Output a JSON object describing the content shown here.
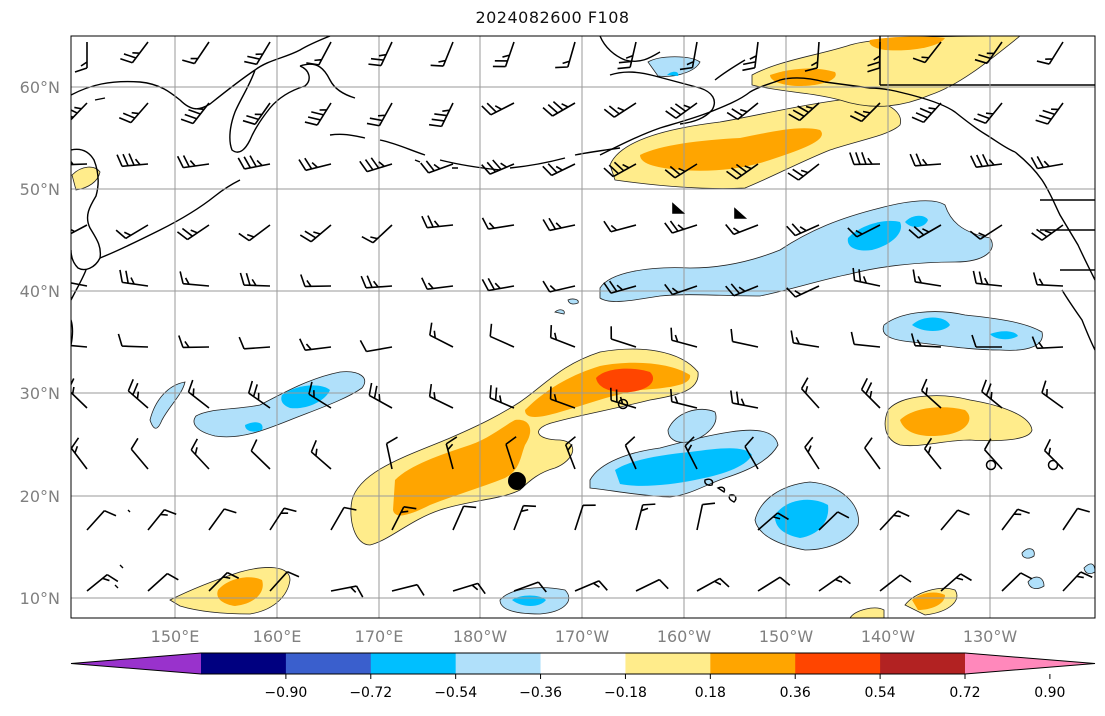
{
  "title": "2024082600 F108",
  "map": {
    "lat_labels": [
      "60°N",
      "50°N",
      "40°N",
      "30°N",
      "20°N",
      "10°N"
    ],
    "lon_labels": [
      "150°E",
      "160°E",
      "170°E",
      "180°W",
      "170°W",
      "160°W",
      "150°W",
      "140°W",
      "130°W"
    ],
    "colors": {
      "land_outline": "#000000",
      "grid": "#9a9a9a"
    }
  },
  "colorbar": {
    "tick_labels": [
      "−0.90",
      "−0.72",
      "−0.54",
      "−0.36",
      "−0.18",
      "0.18",
      "0.36",
      "0.54",
      "0.72",
      "0.90"
    ],
    "colors": [
      "#9932cc",
      "#000080",
      "#3a5fcd",
      "#00bfff",
      "#b0e0fa",
      "#ffffff",
      "#ffec8b",
      "#ffa500",
      "#ff4500",
      "#b22222",
      "#ff88bb"
    ]
  }
}
